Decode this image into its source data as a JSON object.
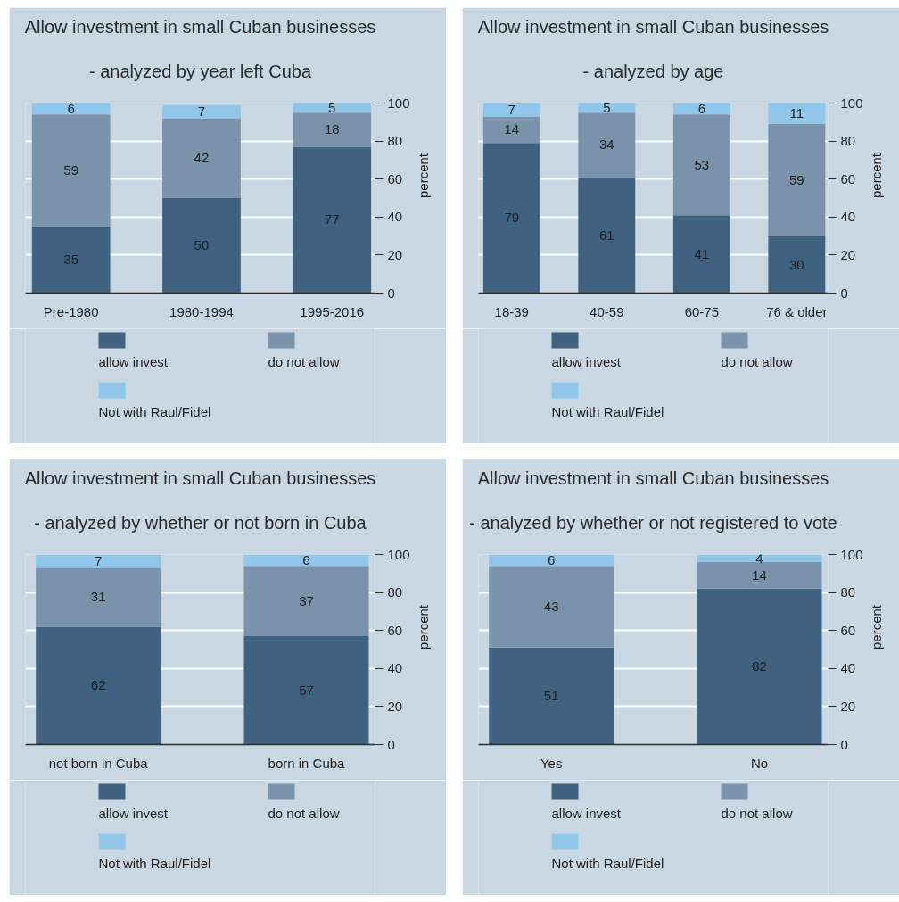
{
  "chart_data": [
    {
      "type": "bar",
      "title": "Allow investment in small Cuban businesses",
      "subtitle": "- analyzed by year left Cuba",
      "ylabel": "percent",
      "categories": [
        "Pre-1980",
        "1980-1994",
        "1995-2016"
      ],
      "stacked": true,
      "series": [
        {
          "name": "allow invest",
          "color": "#3e6280",
          "values": [
            35,
            50,
            77
          ]
        },
        {
          "name": "do not allow",
          "color": "#7b93aa",
          "values": [
            59,
            42,
            18
          ]
        },
        {
          "name": "Not with Raul/Fidel",
          "color": "#8fc6ea",
          "values": [
            6,
            7,
            5
          ]
        }
      ],
      "ylim": [
        0,
        100
      ],
      "yticks": [
        0,
        20,
        40,
        60,
        80,
        100
      ],
      "grid": "y",
      "legend": "bottom",
      "data_labels": true
    },
    {
      "type": "bar",
      "title": "Allow investment in small Cuban businesses",
      "subtitle": "- analyzed by age",
      "ylabel": "percent",
      "categories": [
        "18-39",
        "40-59",
        "60-75",
        "76 & older"
      ],
      "stacked": true,
      "series": [
        {
          "name": "allow invest",
          "color": "#3e6280",
          "values": [
            79,
            61,
            41,
            30
          ]
        },
        {
          "name": "do not allow",
          "color": "#7b93aa",
          "values": [
            14,
            34,
            53,
            59
          ]
        },
        {
          "name": "Not with Raul/Fidel",
          "color": "#8fc6ea",
          "values": [
            7,
            5,
            6,
            11
          ]
        }
      ],
      "ylim": [
        0,
        100
      ],
      "yticks": [
        0,
        20,
        40,
        60,
        80,
        100
      ],
      "grid": "y",
      "legend": "bottom",
      "data_labels": true
    },
    {
      "type": "bar",
      "title": "Allow investment in small Cuban businesses",
      "subtitle": "- analyzed by whether or not born in Cuba",
      "ylabel": "percent",
      "categories": [
        "not born in Cuba",
        "born in Cuba"
      ],
      "stacked": true,
      "series": [
        {
          "name": "allow invest",
          "color": "#3e6280",
          "values": [
            62,
            57
          ]
        },
        {
          "name": "do not allow",
          "color": "#7b93aa",
          "values": [
            31,
            37
          ]
        },
        {
          "name": "Not with Raul/Fidel",
          "color": "#8fc6ea",
          "values": [
            7,
            6
          ]
        }
      ],
      "ylim": [
        0,
        100
      ],
      "yticks": [
        0,
        20,
        40,
        60,
        80,
        100
      ],
      "grid": "y",
      "legend": "bottom",
      "data_labels": true
    },
    {
      "type": "bar",
      "title": "Allow investment in small Cuban businesses",
      "subtitle": "- analyzed by whether or not registered to vote",
      "ylabel": "percent",
      "categories": [
        "Yes",
        "No"
      ],
      "stacked": true,
      "series": [
        {
          "name": "allow invest",
          "color": "#3e6280",
          "values": [
            51,
            82
          ]
        },
        {
          "name": "do not allow",
          "color": "#7b93aa",
          "values": [
            43,
            14
          ]
        },
        {
          "name": "Not with Raul/Fidel",
          "color": "#8fc6ea",
          "values": [
            6,
            4
          ]
        }
      ],
      "ylim": [
        0,
        100
      ],
      "yticks": [
        0,
        20,
        40,
        60,
        80,
        100
      ],
      "grid": "y",
      "legend": "bottom",
      "data_labels": true
    }
  ]
}
